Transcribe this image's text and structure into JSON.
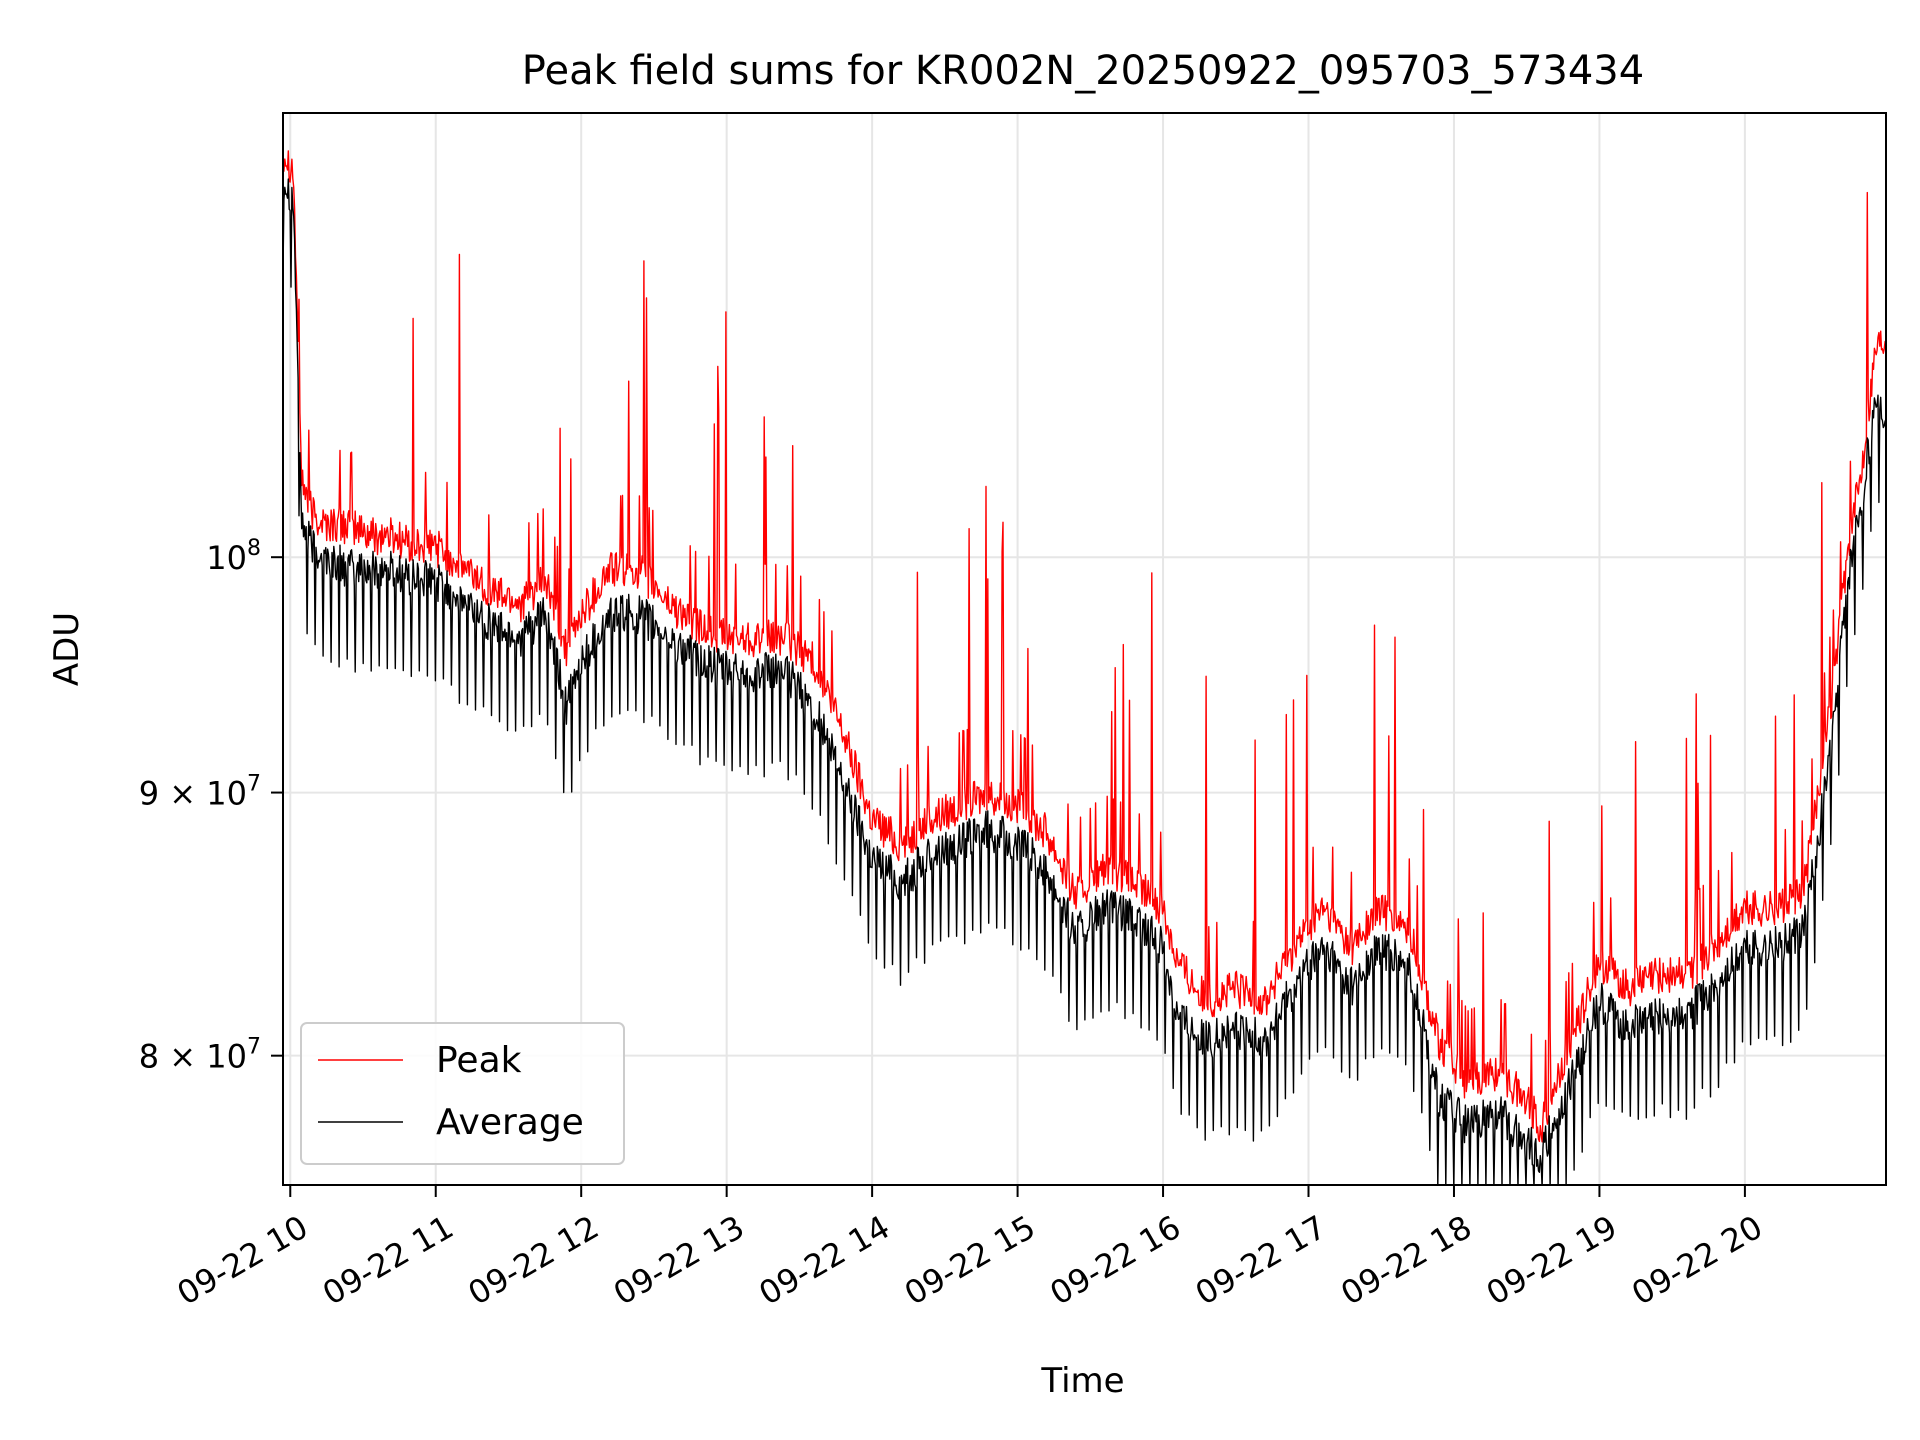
{
  "chart_data": {
    "type": "line",
    "title": "Peak field sums for KR002N_20250922_095703_573434",
    "xlabel": "Time",
    "ylabel": "ADU",
    "y_scale": "log",
    "ylim": [
      75500000,
      122000000
    ],
    "xlim_hours": [
      9.95,
      20.97
    ],
    "grid": true,
    "legend_position": "lower-left",
    "x_ticks": [
      {
        "value": 10,
        "label": "09-22 10"
      },
      {
        "value": 11,
        "label": "09-22 11"
      },
      {
        "value": 12,
        "label": "09-22 12"
      },
      {
        "value": 13,
        "label": "09-22 13"
      },
      {
        "value": 14,
        "label": "09-22 14"
      },
      {
        "value": 15,
        "label": "09-22 15"
      },
      {
        "value": 16,
        "label": "09-22 16"
      },
      {
        "value": 17,
        "label": "09-22 17"
      },
      {
        "value": 18,
        "label": "09-22 18"
      },
      {
        "value": 19,
        "label": "09-22 19"
      },
      {
        "value": 20,
        "label": "09-22 20"
      }
    ],
    "y_ticks": [
      {
        "value": 80000000,
        "mantissa": "8",
        "base": "10",
        "exp": "7",
        "times": true
      },
      {
        "value": 90000000,
        "mantissa": "9",
        "base": "10",
        "exp": "7",
        "times": true
      },
      {
        "value": 100000000,
        "mantissa": "",
        "base": "10",
        "exp": "8",
        "times": false
      }
    ],
    "series": [
      {
        "name": "Peak",
        "color": "#ff0000",
        "x": [
          9.95,
          10.02,
          10.08,
          10.15,
          10.25,
          10.4,
          10.55,
          10.7,
          10.85,
          11.0,
          11.2,
          11.4,
          11.6,
          11.75,
          11.9,
          12.0,
          12.2,
          12.4,
          12.6,
          12.8,
          13.0,
          13.2,
          13.4,
          13.6,
          13.8,
          14.0,
          14.2,
          14.4,
          14.6,
          14.8,
          15.0,
          15.2,
          15.4,
          15.6,
          15.8,
          16.0,
          16.1,
          16.3,
          16.5,
          16.7,
          16.9,
          17.1,
          17.3,
          17.5,
          17.7,
          17.9,
          18.1,
          18.3,
          18.5,
          18.6,
          18.8,
          19.0,
          19.2,
          19.4,
          19.6,
          19.8,
          20.0,
          20.2,
          20.4,
          20.5,
          20.6,
          20.7,
          20.8,
          20.9,
          20.97
        ],
        "y": [
          120000000,
          119000000,
          103500000,
          102000000,
          101500000,
          101500000,
          101000000,
          101000000,
          100500000,
          100500000,
          99500000,
          98500000,
          98000000,
          99000000,
          96000000,
          97500000,
          99500000,
          99500000,
          98000000,
          97000000,
          96500000,
          96500000,
          96500000,
          95500000,
          92500000,
          89000000,
          88000000,
          89000000,
          89500000,
          90000000,
          89500000,
          88500000,
          86000000,
          87000000,
          86500000,
          85500000,
          83500000,
          82000000,
          82500000,
          82000000,
          84000000,
          85500000,
          84000000,
          85500000,
          84500000,
          80500000,
          79000000,
          79500000,
          78500000,
          77500000,
          80500000,
          83500000,
          82500000,
          83000000,
          83000000,
          84000000,
          85500000,
          85500000,
          86000000,
          90000000,
          94000000,
          100000000,
          104000000,
          110000000,
          110500000
        ]
      },
      {
        "name": "Average",
        "color": "#000000",
        "x": [
          9.95,
          10.02,
          10.08,
          10.15,
          10.25,
          10.4,
          10.55,
          10.7,
          10.85,
          11.0,
          11.2,
          11.4,
          11.6,
          11.75,
          11.9,
          12.0,
          12.2,
          12.4,
          12.6,
          12.8,
          13.0,
          13.2,
          13.4,
          13.6,
          13.8,
          14.0,
          14.2,
          14.4,
          14.6,
          14.8,
          15.0,
          15.2,
          15.4,
          15.6,
          15.8,
          16.0,
          16.1,
          16.3,
          16.5,
          16.7,
          16.9,
          17.1,
          17.3,
          17.5,
          17.7,
          17.9,
          18.1,
          18.3,
          18.5,
          18.6,
          18.8,
          19.0,
          19.2,
          19.4,
          19.6,
          19.8,
          20.0,
          20.2,
          20.4,
          20.5,
          20.6,
          20.7,
          20.8,
          20.9,
          20.97
        ],
        "y": [
          118500000,
          117500000,
          101500000,
          100500000,
          100000000,
          99500000,
          99500000,
          99500000,
          99000000,
          99000000,
          98000000,
          97000000,
          96500000,
          97500000,
          93500000,
          95500000,
          97500000,
          97500000,
          96500000,
          95500000,
          95000000,
          95000000,
          95000000,
          93500000,
          90500000,
          87500000,
          86500000,
          87500000,
          88000000,
          88500000,
          88000000,
          87000000,
          84500000,
          85500000,
          85000000,
          84000000,
          81500000,
          80500000,
          81000000,
          80500000,
          82500000,
          84000000,
          82500000,
          84000000,
          83000000,
          78500000,
          77500000,
          78000000,
          77000000,
          76500000,
          79000000,
          82000000,
          81000000,
          81500000,
          81500000,
          82500000,
          84000000,
          84000000,
          84500000,
          88000000,
          92000000,
          98500000,
          102500000,
          107500000,
          106500000
        ]
      }
    ]
  }
}
